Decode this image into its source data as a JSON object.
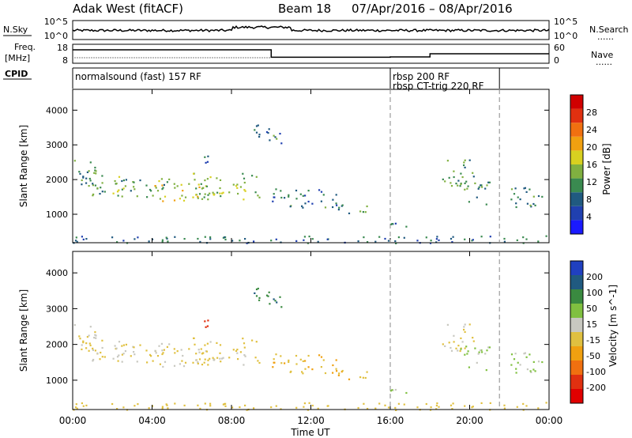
{
  "header": {
    "station": "Adak West (fitACF)",
    "beam_label": "Beam 18",
    "date_range": "07/Apr/2016 – 08/Apr/2016"
  },
  "chart_data": {
    "type": "heatmap",
    "x_ticks": [
      "00:00",
      "04:00",
      "08:00",
      "12:00",
      "16:00",
      "20:00",
      "00:00"
    ],
    "x_hours": [
      0,
      4,
      8,
      12,
      16,
      20,
      24
    ],
    "xlabel": "Time UT",
    "xlim_hours": [
      0,
      24
    ],
    "nsky": {
      "left_label": "N.Sky",
      "right_label": "N.Search",
      "right_marker": "......",
      "left_ticks": [
        "10^5",
        "10^0"
      ],
      "right_ticks": [
        "10^5",
        "10^0"
      ]
    },
    "freq": {
      "label_line1": "Freq.",
      "label_line2": "[MHz]",
      "left_ticks": [
        18,
        8
      ],
      "right_label": "Nave",
      "right_marker": "......",
      "right_ticks": [
        60,
        0
      ],
      "steps": [
        {
          "from": 0,
          "to": 10,
          "freq": 15.5
        },
        {
          "from": 10,
          "to": 16,
          "freq": 10.8
        },
        {
          "from": 16,
          "to": 18,
          "freq": 11.0
        },
        {
          "from": 18,
          "to": 24,
          "freq": 13.0
        }
      ]
    },
    "cpid": {
      "label": "CPID",
      "segments": [
        {
          "from": 0,
          "to": 16,
          "lines": [
            "normalsound (fast) 157 RF"
          ]
        },
        {
          "from": 16,
          "to": 21.5,
          "lines": [
            "rbsp 200 RF",
            "rbsp CT-trig 220 RF"
          ]
        }
      ]
    },
    "ylabel": "Slant Range [km]",
    "ylim_km": [
      180,
      4600
    ],
    "y_ticks": [
      1000,
      2000,
      3000,
      4000
    ],
    "dashed_lines_hours": [
      16,
      21.5
    ],
    "power": {
      "colorbar_label": "Power [dB]",
      "colorbar_ticks": [
        4,
        8,
        12,
        16,
        20,
        24,
        28
      ],
      "colors": [
        "#1a1aff",
        "#2040b0",
        "#205a80",
        "#3a8a50",
        "#80b040",
        "#d8d020",
        "#f0a010",
        "#f07010",
        "#e03010",
        "#d00000"
      ]
    },
    "velocity": {
      "colorbar_label": "Velocity [m s^-1]",
      "colorbar_ticks": [
        200,
        100,
        50,
        15,
        -15,
        -50,
        -100,
        -200
      ],
      "colors": [
        "#2040c0",
        "#205a80",
        "#3a8a40",
        "#80c040",
        "#c8c8c0",
        "#e0c040",
        "#f0a010",
        "#f07010",
        "#e03010",
        "#e00000"
      ]
    },
    "echo_regions": [
      {
        "t0": 0.0,
        "t1": 1.5,
        "r0": 1750,
        "r1": 2650,
        "p": 10,
        "v": -5
      },
      {
        "t0": 0.5,
        "t1": 5.0,
        "r0": 1500,
        "r1": 2100,
        "p": 12,
        "v": -5
      },
      {
        "t0": 4.0,
        "t1": 7.5,
        "r0": 1350,
        "r1": 1900,
        "p": 15,
        "v": 0
      },
      {
        "t0": 6.0,
        "t1": 9.5,
        "r0": 1450,
        "r1": 2200,
        "p": 14,
        "v": -10
      },
      {
        "t0": 9.0,
        "t1": 10.5,
        "r0": 3000,
        "r1": 3600,
        "p": 9,
        "v": 150
      },
      {
        "t0": 6.3,
        "t1": 7.4,
        "r0": 2500,
        "r1": 2700,
        "p": 8,
        "v": -160
      },
      {
        "t0": 10.0,
        "t1": 13.5,
        "r0": 1200,
        "r1": 1750,
        "p": 9,
        "v": -40
      },
      {
        "t0": 13.0,
        "t1": 15.0,
        "r0": 1000,
        "r1": 1300,
        "p": 10,
        "v": -40
      },
      {
        "t0": 15.5,
        "t1": 17.0,
        "r0": 650,
        "r1": 850,
        "p": 7,
        "v": 40
      },
      {
        "t0": 18.5,
        "t1": 20.2,
        "r0": 1800,
        "r1": 2600,
        "p": 11,
        "v": -10
      },
      {
        "t0": 19.5,
        "t1": 21.0,
        "r0": 1300,
        "r1": 2000,
        "p": 11,
        "v": 60
      },
      {
        "t0": 22.0,
        "t1": 24.0,
        "r0": 1200,
        "r1": 1800,
        "p": 10,
        "v": 60
      },
      {
        "t0": 0.0,
        "t1": 24.0,
        "r0": 180,
        "r1": 400,
        "p": 8,
        "v": -30
      }
    ]
  }
}
